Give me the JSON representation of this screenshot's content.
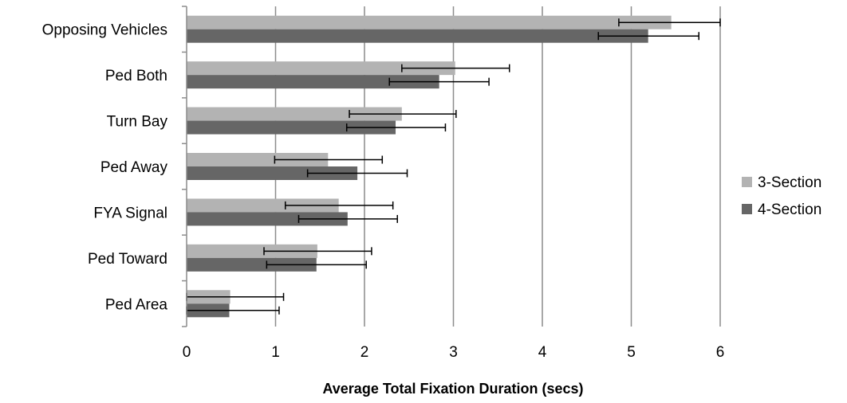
{
  "chart_data": {
    "type": "bar",
    "orientation": "horizontal",
    "title": "",
    "xlabel": "Average Total Fixation Duration (secs)",
    "ylabel": "",
    "xlim": [
      0,
      6
    ],
    "x_ticks": [
      0,
      1,
      2,
      3,
      4,
      5,
      6
    ],
    "grid": "vertical",
    "legend_position": "right",
    "categories": [
      "Opposing Vehicles",
      "Ped Both",
      "Turn Bay",
      "Ped Away",
      "FYA Signal",
      "Ped Toward",
      "Ped Area"
    ],
    "series": [
      {
        "name": "3-Section",
        "color": "#b3b3b3",
        "values": [
          5.45,
          3.02,
          2.42,
          1.59,
          1.71,
          1.47,
          0.49
        ],
        "error_low": [
          4.86,
          2.42,
          1.83,
          0.99,
          1.11,
          0.87,
          0.0
        ],
        "error_high": [
          6.0,
          3.63,
          3.03,
          2.2,
          2.32,
          2.08,
          1.09
        ]
      },
      {
        "name": "4-Section",
        "color": "#666666",
        "values": [
          5.19,
          2.84,
          2.35,
          1.92,
          1.81,
          1.46,
          0.48
        ],
        "error_low": [
          4.63,
          2.28,
          1.8,
          1.36,
          1.26,
          0.9,
          0.0
        ],
        "error_high": [
          5.76,
          3.4,
          2.91,
          2.48,
          2.37,
          2.02,
          1.04
        ]
      }
    ]
  }
}
